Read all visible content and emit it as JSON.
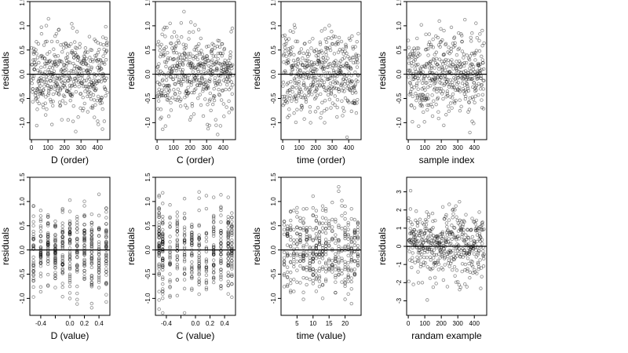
{
  "chart_data": [
    {
      "type": "scatter",
      "xlabel": "D (order)",
      "ylabel": "residuals",
      "xlim": [
        -10,
        475
      ],
      "ylim": [
        -1.35,
        1.5
      ],
      "xticks": [
        0,
        100,
        200,
        300,
        400
      ],
      "yticks": [
        -1.0,
        -0.5,
        0.0,
        0.5,
        1.0,
        1.5
      ],
      "xtick_labels": [
        "0",
        "100",
        "200",
        "300",
        "400"
      ],
      "ytick_labels": [
        "-1.0",
        "-0.5",
        "0.0",
        "0.5",
        "1.0",
        "1.5"
      ],
      "reference_line_y": 0,
      "n_points": 460,
      "y_sd": 0.42,
      "series_seed": 11,
      "x_mode": "index",
      "x_values": []
    },
    {
      "type": "scatter",
      "xlabel": "C (order)",
      "ylabel": "residuals",
      "xlim": [
        -10,
        475
      ],
      "ylim": [
        -1.35,
        1.5
      ],
      "xticks": [
        0,
        100,
        200,
        300,
        400
      ],
      "yticks": [
        -1.0,
        -0.5,
        0.0,
        0.5,
        1.0,
        1.5
      ],
      "xtick_labels": [
        "0",
        "100",
        "200",
        "300",
        "400"
      ],
      "ytick_labels": [
        "-1.0",
        "-0.5",
        "0.0",
        "0.5",
        "1.0",
        "1.5"
      ],
      "reference_line_y": 0,
      "n_points": 460,
      "y_sd": 0.42,
      "series_seed": 23,
      "x_mode": "index",
      "x_values": []
    },
    {
      "type": "scatter",
      "xlabel": "time (order)",
      "ylabel": "residuals",
      "xlim": [
        -10,
        475
      ],
      "ylim": [
        -1.35,
        1.5
      ],
      "xticks": [
        0,
        100,
        200,
        300,
        400
      ],
      "yticks": [
        -1.0,
        -0.5,
        0.0,
        0.5,
        1.0,
        1.5
      ],
      "xtick_labels": [
        "0",
        "100",
        "200",
        "300",
        "400"
      ],
      "ytick_labels": [
        "-1.0",
        "-0.5",
        "0.0",
        "0.5",
        "1.0",
        "1.5"
      ],
      "reference_line_y": 0,
      "n_points": 460,
      "y_sd": 0.42,
      "series_seed": 37,
      "x_mode": "index",
      "x_values": []
    },
    {
      "type": "scatter",
      "xlabel": "sample index",
      "ylabel": "residuals",
      "xlim": [
        -10,
        475
      ],
      "ylim": [
        -1.35,
        1.5
      ],
      "xticks": [
        0,
        100,
        200,
        300,
        400
      ],
      "yticks": [
        -1.0,
        -0.5,
        0.0,
        0.5,
        1.0,
        1.5
      ],
      "xtick_labels": [
        "0",
        "100",
        "200",
        "300",
        "400"
      ],
      "ytick_labels": [
        "-1.0",
        "-0.5",
        "0.0",
        "0.5",
        "1.0",
        "1.5"
      ],
      "reference_line_y": 0,
      "n_points": 460,
      "y_sd": 0.42,
      "series_seed": 41,
      "x_mode": "index",
      "x_values": []
    },
    {
      "type": "scatter",
      "xlabel": "D (value)",
      "ylabel": "residuals",
      "xlim": [
        -0.55,
        0.55
      ],
      "ylim": [
        -1.35,
        1.5
      ],
      "xticks": [
        -0.4,
        -0.2,
        0.0,
        0.2,
        0.4
      ],
      "yticks": [
        -1.0,
        -0.5,
        0.0,
        0.5,
        1.0,
        1.5
      ],
      "xtick_labels": [
        "-0.4",
        "",
        "0.0",
        "0.2",
        "0.4"
      ],
      "ytick_labels": [
        "-1.0",
        "-0.5",
        "0.0",
        "0.5",
        "1.0",
        "1.5"
      ],
      "reference_line_y": 0,
      "n_points": 460,
      "y_sd": 0.42,
      "series_seed": 53,
      "x_mode": "discrete",
      "x_values": [
        -0.5,
        -0.4,
        -0.3,
        -0.2,
        -0.1,
        0.0,
        0.1,
        0.2,
        0.3,
        0.4,
        0.5
      ]
    },
    {
      "type": "scatter",
      "xlabel": "C (value)",
      "ylabel": "residuals",
      "xlim": [
        -0.55,
        0.55
      ],
      "ylim": [
        -1.35,
        1.5
      ],
      "xticks": [
        -0.4,
        -0.2,
        0.0,
        0.2,
        0.4
      ],
      "yticks": [
        -1.0,
        -0.5,
        0.0,
        0.5,
        1.0,
        1.5
      ],
      "xtick_labels": [
        "-0.4",
        "",
        "0.0",
        "0.2",
        "0.4"
      ],
      "ytick_labels": [
        "-1.0",
        "-0.5",
        "0.0",
        "0.5",
        "1.0",
        "1.5"
      ],
      "reference_line_y": 0,
      "n_points": 460,
      "y_sd": 0.42,
      "series_seed": 67,
      "x_mode": "discrete",
      "x_values": [
        -0.5,
        -0.45,
        -0.35,
        -0.25,
        -0.15,
        -0.05,
        0.05,
        0.15,
        0.25,
        0.35,
        0.45,
        0.5
      ]
    },
    {
      "type": "scatter",
      "xlabel": "time (value)",
      "ylabel": "residuals",
      "xlim": [
        0,
        25
      ],
      "ylim": [
        -1.35,
        1.5
      ],
      "xticks": [
        5,
        10,
        15,
        20
      ],
      "yticks": [
        -1.0,
        -0.5,
        0.0,
        0.5,
        1.0,
        1.5
      ],
      "xtick_labels": [
        "5",
        "10",
        "15",
        "20"
      ],
      "ytick_labels": [
        "-1.0",
        "-0.5",
        "0.0",
        "0.5",
        "1.0",
        "1.5"
      ],
      "reference_line_y": 0,
      "n_points": 460,
      "y_sd": 0.42,
      "series_seed": 79,
      "x_mode": "discrete",
      "x_values": [
        1,
        2,
        3,
        4,
        5,
        6,
        7,
        8,
        9,
        10,
        11,
        12,
        13,
        14,
        15,
        16,
        17,
        18,
        19,
        20,
        21,
        22,
        23,
        24
      ]
    },
    {
      "type": "scatter",
      "xlabel": "randam example",
      "ylabel": "residuals",
      "xlim": [
        -10,
        475
      ],
      "ylim": [
        -3.8,
        3.8
      ],
      "xticks": [
        0,
        100,
        200,
        300,
        400
      ],
      "yticks": [
        -3,
        -2,
        -1,
        0,
        1,
        2,
        3
      ],
      "xtick_labels": [
        "0",
        "100",
        "200",
        "300",
        "400"
      ],
      "ytick_labels": [
        "-3",
        "-2",
        "-1",
        "0",
        "1",
        "2",
        "3"
      ],
      "reference_line_y": 0,
      "n_points": 460,
      "y_sd": 1.0,
      "series_seed": 97,
      "x_mode": "index",
      "x_values": []
    }
  ]
}
